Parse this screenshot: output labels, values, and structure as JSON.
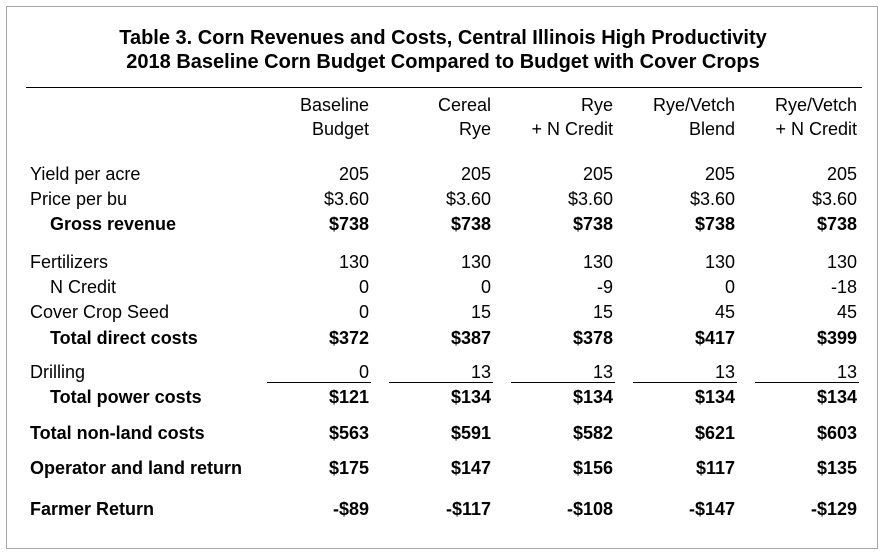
{
  "title_line1": "Table 3.  Corn Revenues and Costs, Central Illinois High Productivity",
  "title_line2": "2018 Baseline Corn Budget Compared to Budget with Cover Crops",
  "columns": [
    {
      "line1": "Baseline",
      "line2": "Budget"
    },
    {
      "line1": "Cereal",
      "line2": "Rye"
    },
    {
      "line1": "Rye",
      "line2": "+ N Credit"
    },
    {
      "line1": "Rye/Vetch",
      "line2": "Blend"
    },
    {
      "line1": "Rye/Vetch",
      "line2": "+ N Credit"
    }
  ],
  "rows": [
    {
      "label": "Yield per acre",
      "values": [
        "205",
        "205",
        "205",
        "205",
        "205"
      ]
    },
    {
      "label": "Price per bu",
      "values": [
        "$3.60",
        "$3.60",
        "$3.60",
        "$3.60",
        "$3.60"
      ]
    },
    {
      "label": "Gross revenue",
      "values": [
        "$738",
        "$738",
        "$738",
        "$738",
        "$738"
      ]
    },
    {
      "label": "Fertilizers",
      "values": [
        "130",
        "130",
        "130",
        "130",
        "130"
      ]
    },
    {
      "label": "N Credit",
      "values": [
        "0",
        "0",
        "-9",
        "0",
        "-18"
      ]
    },
    {
      "label": "Cover Crop Seed",
      "values": [
        "0",
        "15",
        "15",
        "45",
        "45"
      ]
    },
    {
      "label": "Total direct costs",
      "values": [
        "$372",
        "$387",
        "$378",
        "$417",
        "$399"
      ]
    },
    {
      "label": "Drilling",
      "values": [
        "0",
        "13",
        "13",
        "13",
        "13"
      ]
    },
    {
      "label": "Total power costs",
      "values": [
        "$121",
        "$134",
        "$134",
        "$134",
        "$134"
      ]
    },
    {
      "label": "Total non-land costs",
      "values": [
        "$563",
        "$591",
        "$582",
        "$621",
        "$603"
      ]
    },
    {
      "label": "Operator and land return",
      "values": [
        "$175",
        "$147",
        "$156",
        "$117",
        "$135"
      ]
    },
    {
      "label": "Farmer Return",
      "values": [
        "-$89",
        "-$117",
        "-$108",
        "-$147",
        "-$129"
      ]
    }
  ]
}
